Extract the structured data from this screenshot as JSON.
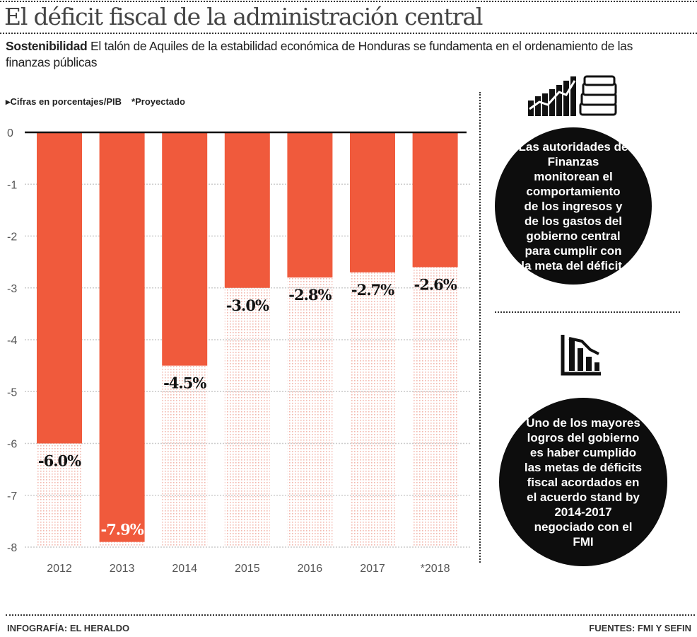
{
  "header": {
    "title": "El déficit fiscal de la administración central",
    "subtitle_lead": "Sostenibilidad",
    "subtitle_text": "El talón de Aquiles de la estabilidad económica de Honduras se fundamenta en el ordenamiento de las finanzas públicas"
  },
  "legend": {
    "units": "▸Cifras en porcentajes/PIB",
    "projected": "*Proyectado"
  },
  "chart_data": {
    "type": "bar",
    "title": "",
    "xlabel": "",
    "ylabel": "",
    "categories": [
      "2012",
      "2013",
      "2014",
      "2015",
      "2016",
      "2017",
      "*2018"
    ],
    "values": [
      -6.0,
      -7.9,
      -4.5,
      -3.0,
      -2.8,
      -2.7,
      -2.6
    ],
    "data_labels": [
      "-6.0%",
      "-7.9%",
      "-4.5%",
      "-3.0%",
      "-2.8%",
      "-2.7%",
      "-2.6%"
    ],
    "ylim": [
      -8,
      0
    ],
    "yticks": [
      "0",
      "-1",
      "-2",
      "-3",
      "-4",
      "-5",
      "-6",
      "-7",
      "-8"
    ],
    "grid": true,
    "colors": {
      "bar": "#f05a3c",
      "dots": "#f2b8ae",
      "label": "#111111"
    }
  },
  "side": {
    "note1": "Las autoridades de Finanzas monitorean el comportamiento de los ingresos y de los gastos del gobierno central para cumplir con la meta del déficit.",
    "note2": "Uno de los mayores logros del gobierno es haber cumplido las metas de déficits fiscal acordados en el acuerdo stand by 2014-2017 negociado con el FMI",
    "icon1": "bar-growth-and-money-stack-icon",
    "icon2": "declining-bar-chart-icon"
  },
  "footer": {
    "credit": "INFOGRAFÍA: EL HERALDO",
    "sources": "FUENTES: FMI Y SEFIN"
  }
}
